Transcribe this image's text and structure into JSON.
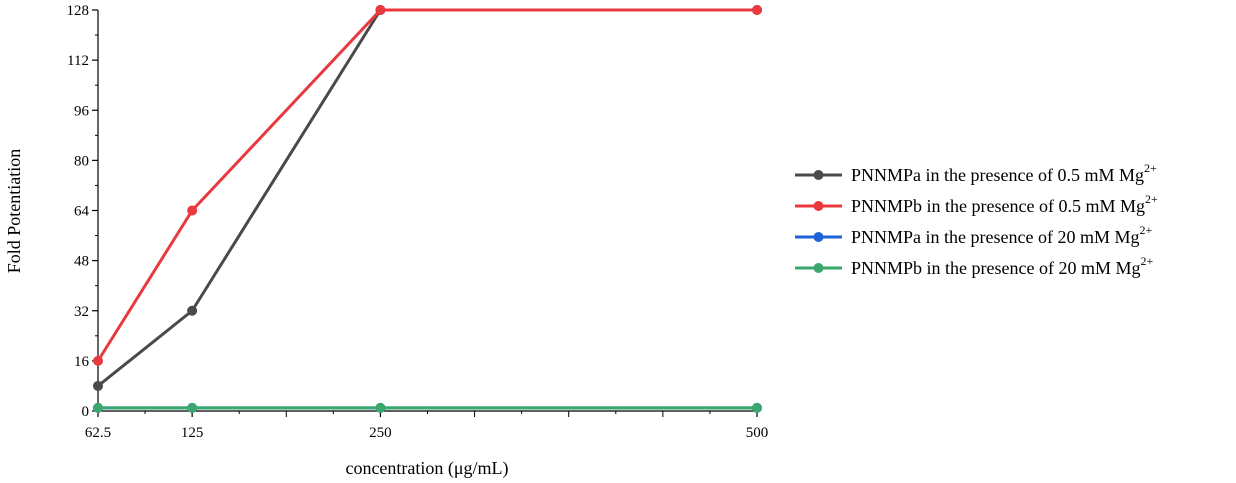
{
  "chart_data": {
    "type": "line",
    "title": "",
    "xlabel": "concentration (μg/mL)",
    "ylabel": "Fold Potentiation",
    "x_ticks": [
      "62.5",
      "125",
      "250",
      "500"
    ],
    "y_ticks": [
      "0",
      "16",
      "32",
      "48",
      "64",
      "80",
      "96",
      "112",
      "128"
    ],
    "x": [
      62.5,
      125,
      250,
      500
    ],
    "ylim": [
      0,
      128
    ],
    "xlim": [
      62.5,
      500
    ],
    "grid": false,
    "legend_position": "right",
    "series": [
      {
        "name": "PNNMPa in the presence of 0.5 mM Mg",
        "superscript": "2+",
        "color": "#4a4a4a",
        "values": [
          8,
          32,
          128,
          128
        ]
      },
      {
        "name": "PNNMPb in the presence of 0.5 mM Mg",
        "superscript": "2+",
        "color": "#e8393f",
        "values": [
          16,
          64,
          128,
          128
        ]
      },
      {
        "name": "PNNMPa in the presence of 20 mM Mg",
        "superscript": "2+",
        "color": "#1f63d6",
        "values": [
          1,
          1,
          1,
          1
        ]
      },
      {
        "name": "PNNMPb in the presence of 20 mM Mg",
        "superscript": "2+",
        "color": "#3aa76d",
        "values": [
          1,
          1,
          1,
          1
        ]
      }
    ]
  }
}
